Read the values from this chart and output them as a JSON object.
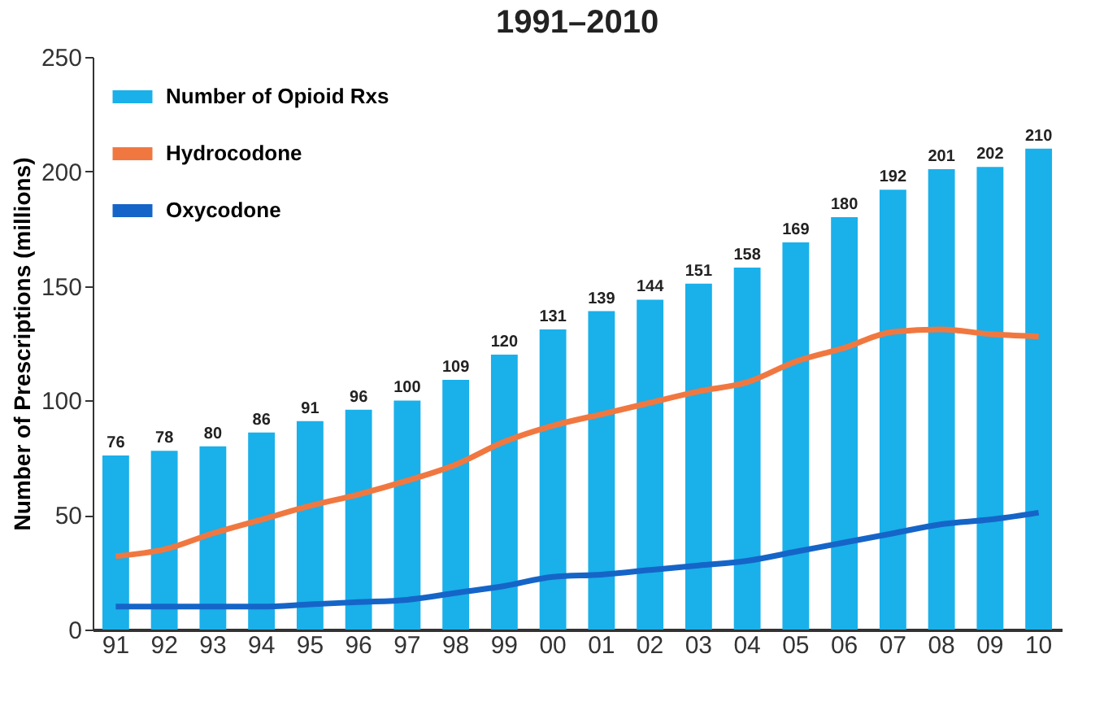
{
  "chart_data": {
    "type": "bar",
    "title": "1991–2010",
    "ylabel": "Number of Prescriptions (millions)",
    "categories": [
      "91",
      "92",
      "93",
      "94",
      "95",
      "96",
      "97",
      "98",
      "99",
      "00",
      "01",
      "02",
      "03",
      "04",
      "05",
      "06",
      "07",
      "08",
      "09",
      "10"
    ],
    "series": [
      {
        "name": "Number of Opioid Rxs",
        "color": "#1ab0ea",
        "values": [
          76,
          78,
          80,
          86,
          91,
          96,
          100,
          109,
          120,
          131,
          139,
          144,
          151,
          158,
          169,
          180,
          192,
          201,
          202,
          210
        ],
        "value_labels": [
          "76",
          "78",
          "80",
          "86",
          "91",
          "96",
          "100",
          "109",
          "120",
          "131",
          "139",
          "144",
          "151",
          "158",
          "169",
          "180",
          "192",
          "201",
          "202",
          "210"
        ]
      },
      {
        "name": "Hydrocodone",
        "type": "line",
        "color": "#f07840",
        "values": [
          32,
          35,
          42,
          48,
          54,
          59,
          65,
          72,
          82,
          89,
          94,
          99,
          104,
          108,
          117,
          123,
          130,
          131,
          129,
          128
        ]
      },
      {
        "name": "Oxycodone",
        "type": "line",
        "color": "#1565c8",
        "values": [
          10,
          10,
          10,
          10,
          11,
          12,
          13,
          16,
          19,
          23,
          24,
          26,
          28,
          30,
          34,
          38,
          42,
          46,
          48,
          51
        ]
      }
    ],
    "ylim": [
      0,
      250
    ],
    "yticks": [
      0,
      50,
      100,
      150,
      200,
      250
    ],
    "grid": false,
    "legend": "top left",
    "marker": "none",
    "line_style": "solid"
  }
}
